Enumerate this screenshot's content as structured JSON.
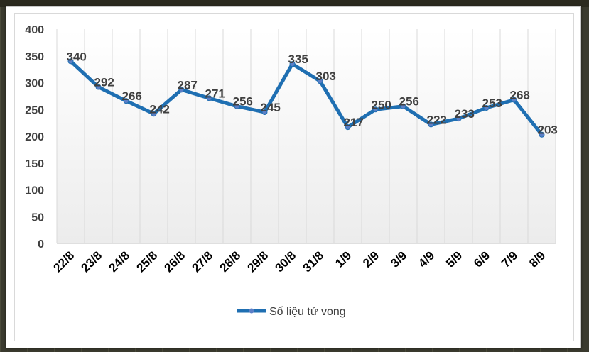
{
  "chart_data": {
    "type": "line",
    "title": "",
    "xlabel": "",
    "ylabel": "",
    "ylim": [
      0,
      400
    ],
    "yticks": [
      0,
      50,
      100,
      150,
      200,
      250,
      300,
      350,
      400
    ],
    "categories": [
      "22/8",
      "23/8",
      "24/8",
      "25/8",
      "26/8",
      "27/8",
      "28/8",
      "29/8",
      "30/8",
      "31/8",
      "1/9",
      "2/9",
      "3/9",
      "4/9",
      "5/9",
      "6/9",
      "7/9",
      "8/9"
    ],
    "series": [
      {
        "name": "Số liệu tử vong",
        "color": "#1f6fb2",
        "values": [
          340,
          292,
          266,
          242,
          287,
          271,
          256,
          245,
          335,
          303,
          217,
          250,
          256,
          222,
          233,
          253,
          268,
          203
        ]
      }
    ],
    "grid": "vertical",
    "legend": "bottom"
  }
}
